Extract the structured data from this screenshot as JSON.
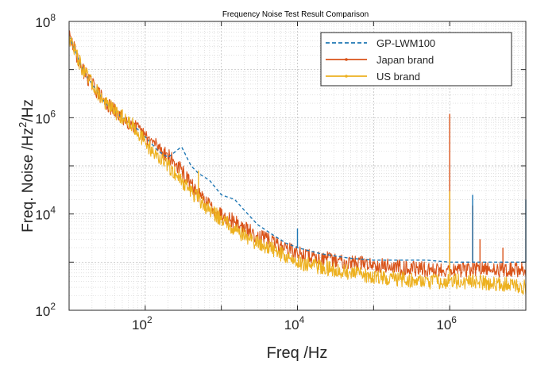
{
  "chart_data": {
    "type": "line",
    "title": "Frequency Noise Test Result Comparison",
    "xlabel": "Freq /Hz",
    "ylabel_base": "Freq. Noise /Hz",
    "ylabel_sup": "2",
    "ylabel_tail": "/Hz",
    "xscale": "log",
    "yscale": "log",
    "xlim": [
      10,
      10000000
    ],
    "ylim": [
      100,
      100000000
    ],
    "grid": true,
    "legend_position": "top-right",
    "x_ticks": [
      {
        "value": 100,
        "base": "10",
        "exp": "2"
      },
      {
        "value": 10000,
        "base": "10",
        "exp": "4"
      },
      {
        "value": 1000000,
        "base": "10",
        "exp": "6"
      }
    ],
    "y_ticks": [
      {
        "value": 100,
        "base": "10",
        "exp": "2"
      },
      {
        "value": 10000,
        "base": "10",
        "exp": "4"
      },
      {
        "value": 1000000,
        "base": "10",
        "exp": "6"
      },
      {
        "value": 100000000,
        "base": "10",
        "exp": "8"
      }
    ],
    "series": [
      {
        "name": "GP-LWM100",
        "color": "#1f77b4",
        "style": "dashed",
        "x": [
          10,
          15,
          20,
          30,
          50,
          70,
          100,
          150,
          200,
          300,
          400,
          500,
          700,
          1000,
          1500,
          2000,
          3000,
          5000,
          7000,
          10000,
          20000,
          50000,
          100000,
          200000,
          500000,
          1000000,
          2000000,
          5000000,
          10000000
        ],
        "y": [
          50000000,
          10000000,
          5000000,
          2000000,
          1000000,
          700000,
          400000,
          200000,
          150000,
          250000,
          100000,
          70000,
          50000,
          25000,
          20000,
          12000,
          6000,
          3500,
          2500,
          2000,
          1500,
          1200,
          1100,
          1100,
          1100,
          1000,
          1000,
          1000,
          1000
        ],
        "spikes": [
          {
            "x": 10000,
            "y": 5000
          },
          {
            "x": 2000000,
            "y": 25000
          },
          {
            "x": 10000000,
            "y": 20000
          }
        ]
      },
      {
        "name": "Japan brand",
        "color": "#d95319",
        "style": "solid-marker",
        "x": [
          10,
          15,
          20,
          30,
          50,
          70,
          100,
          150,
          200,
          300,
          400,
          500,
          700,
          1000,
          1500,
          2000,
          3000,
          5000,
          7000,
          10000,
          20000,
          50000,
          100000,
          200000,
          500000,
          1000000,
          2000000,
          5000000,
          10000000
        ],
        "y": [
          50000000,
          10000000,
          5000000,
          2000000,
          1000000,
          700000,
          400000,
          250000,
          160000,
          80000,
          40000,
          25000,
          15000,
          10000,
          7000,
          5000,
          3500,
          2500,
          2000,
          1500,
          1200,
          1000,
          900,
          800,
          700,
          700,
          700,
          700,
          700
        ],
        "spikes": [
          {
            "x": 1000000,
            "y": 1200000
          },
          {
            "x": 2000000,
            "y": 15000
          },
          {
            "x": 2500000,
            "y": 3000
          },
          {
            "x": 5000000,
            "y": 2000
          }
        ]
      },
      {
        "name": "US brand",
        "color": "#edb120",
        "style": "solid-marker",
        "x": [
          10,
          15,
          20,
          30,
          50,
          70,
          100,
          150,
          200,
          300,
          400,
          500,
          700,
          1000,
          1500,
          2000,
          3000,
          5000,
          7000,
          10000,
          20000,
          50000,
          100000,
          200000,
          500000,
          1000000,
          2000000,
          5000000,
          10000000
        ],
        "y": [
          50000000,
          10000000,
          5000000,
          2000000,
          1000000,
          700000,
          300000,
          150000,
          100000,
          50000,
          30000,
          20000,
          12000,
          8000,
          5000,
          3500,
          2500,
          1800,
          1300,
          1000,
          800,
          600,
          500,
          450,
          400,
          400,
          400,
          350,
          300
        ],
        "spikes": [
          {
            "x": 50,
            "y": 1500000
          },
          {
            "x": 500,
            "y": 80000
          },
          {
            "x": 1000000,
            "y": 30000
          }
        ]
      }
    ]
  }
}
